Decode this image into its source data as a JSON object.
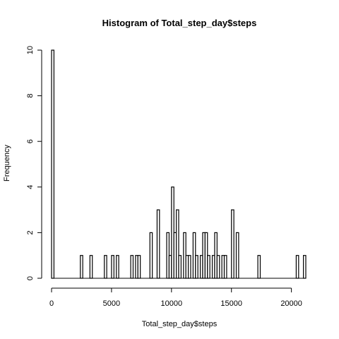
{
  "chart_data": {
    "type": "bar",
    "subtype": "histogram",
    "title": "Histogram of Total_step_day$steps",
    "xlabel": "Total_step_day$steps",
    "ylabel": "Frequency",
    "bin_width": 200,
    "xlim": [
      0,
      21200
    ],
    "ylim": [
      0,
      10
    ],
    "xticks": [
      "0",
      "5000",
      "10000",
      "15000",
      "20000"
    ],
    "yticks": [
      "0",
      "2",
      "4",
      "6",
      "8",
      "10"
    ],
    "bar_fill": "#ffffff",
    "bar_stroke": "#000000",
    "bins": [
      {
        "start": 0,
        "count": 10
      },
      {
        "start": 2400,
        "count": 1
      },
      {
        "start": 3200,
        "count": 1
      },
      {
        "start": 4400,
        "count": 1
      },
      {
        "start": 5000,
        "count": 1
      },
      {
        "start": 5400,
        "count": 1
      },
      {
        "start": 6600,
        "count": 1
      },
      {
        "start": 7000,
        "count": 1
      },
      {
        "start": 7200,
        "count": 1
      },
      {
        "start": 8200,
        "count": 2
      },
      {
        "start": 8800,
        "count": 3
      },
      {
        "start": 9600,
        "count": 2
      },
      {
        "start": 9800,
        "count": 1
      },
      {
        "start": 10000,
        "count": 4
      },
      {
        "start": 10200,
        "count": 2
      },
      {
        "start": 10400,
        "count": 3
      },
      {
        "start": 10600,
        "count": 1
      },
      {
        "start": 11000,
        "count": 2
      },
      {
        "start": 11200,
        "count": 1
      },
      {
        "start": 11400,
        "count": 1
      },
      {
        "start": 11800,
        "count": 2
      },
      {
        "start": 12000,
        "count": 1
      },
      {
        "start": 12400,
        "count": 1
      },
      {
        "start": 12600,
        "count": 2
      },
      {
        "start": 12800,
        "count": 2
      },
      {
        "start": 13000,
        "count": 1
      },
      {
        "start": 13400,
        "count": 1
      },
      {
        "start": 13600,
        "count": 2
      },
      {
        "start": 13800,
        "count": 1
      },
      {
        "start": 14200,
        "count": 1
      },
      {
        "start": 14400,
        "count": 1
      },
      {
        "start": 15000,
        "count": 3
      },
      {
        "start": 15400,
        "count": 2
      },
      {
        "start": 17200,
        "count": 1
      },
      {
        "start": 20400,
        "count": 1
      },
      {
        "start": 21000,
        "count": 1
      }
    ]
  }
}
